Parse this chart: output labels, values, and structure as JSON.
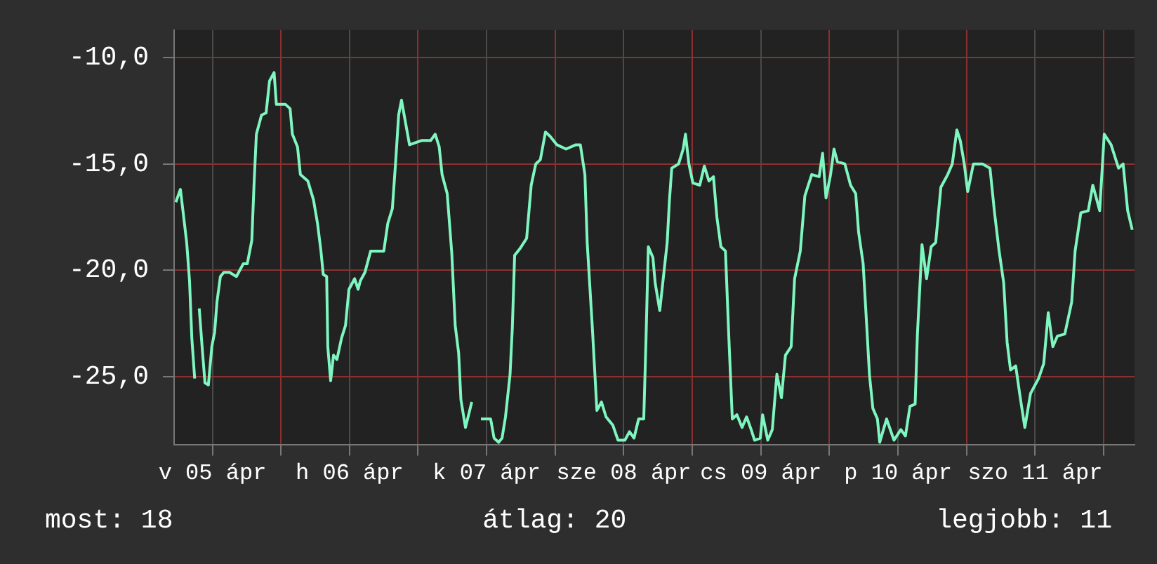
{
  "chart_data": {
    "type": "line",
    "x": [
      "--04-05T05:36",
      "--04-05T06:24",
      "--04-05T06:48",
      "--04-05T07:30",
      "--04-05T08:00",
      "--04-05T08:24",
      "--04-05T08:54",
      "--04-05T09:18",
      "--04-05T09:42",
      "--04-05T10:12",
      "--04-05T10:42",
      "--04-05T11:18",
      "--04-05T11:54",
      "--04-05T12:24",
      "--04-05T12:48",
      "--04-05T13:24",
      "--04-05T14:00",
      "--04-05T15:00",
      "--04-05T16:12",
      "--04-05T17:24",
      "--04-05T18:06",
      "--04-05T18:54",
      "--04-05T19:18",
      "--04-05T19:42",
      "--04-05T20:36",
      "--04-05T21:24",
      "--04-05T22:00",
      "--04-05T22:48",
      "--04-05T23:12",
      "--04-06T00:48",
      "--04-06T01:36",
      "--04-06T02:00",
      "--04-06T02:54",
      "--04-06T03:24",
      "--04-06T04:42",
      "--04-06T05:42",
      "--04-06T06:24",
      "--04-06T07:00",
      "--04-06T07:24",
      "--04-06T08:00",
      "--04-06T08:12",
      "--04-06T08:42",
      "--04-06T09:12",
      "--04-06T09:48",
      "--04-06T10:36",
      "--04-06T11:18",
      "--04-06T11:54",
      "--04-06T12:54",
      "--04-06T13:30",
      "--04-06T13:54",
      "--04-06T14:42",
      "--04-06T15:42",
      "--04-06T18:00",
      "--04-06T18:42",
      "--04-06T19:30",
      "--04-06T20:06",
      "--04-06T20:36",
      "--04-06T21:06",
      "--04-06T21:42",
      "--04-06T22:30",
      "--04-07T00:36",
      "--04-07T02:12",
      "--04-07T03:00",
      "--04-07T03:42",
      "--04-07T04:12",
      "--04-07T05:06",
      "--04-07T05:54",
      "--04-07T06:30",
      "--04-07T07:06",
      "--04-07T07:30",
      "--04-07T08:18",
      "--04-07T09:24",
      "--04-07T09:48",
      "--04-07T11:00",
      "--04-07T12:42",
      "--04-07T13:18",
      "--04-07T14:06",
      "--04-07T14:42",
      "--04-07T15:18",
      "--04-07T16:06",
      "--04-07T16:30",
      "--04-07T16:54",
      "--04-07T17:48",
      "--04-07T19:00",
      "--04-07T19:48",
      "--04-07T20:36",
      "--04-07T21:24",
      "--04-07T22:18",
      "--04-07T23:06",
      "--04-08T00:18",
      "--04-08T01:54",
      "--04-08T03:36",
      "--04-08T04:24",
      "--04-08T05:12",
      "--04-08T05:36",
      "--04-08T06:30",
      "--04-08T07:18",
      "--04-08T08:06",
      "--04-08T08:54",
      "--04-08T10:06",
      "--04-08T11:00",
      "--04-08T12:12",
      "--04-08T13:00",
      "--04-08T13:48",
      "--04-08T14:36",
      "--04-08T15:30",
      "--04-08T15:54",
      "--04-08T16:18",
      "--04-08T17:06",
      "--04-08T17:30",
      "--04-08T18:18",
      "--04-08T19:36",
      "--04-08T20:00",
      "--04-08T20:24",
      "--04-08T21:36",
      "--04-08T22:24",
      "--04-08T22:48",
      "--04-08T23:24",
      "--04-09T00:06",
      "--04-09T01:18",
      "--04-09T02:06",
      "--04-09T02:54",
      "--04-09T03:42",
      "--04-09T04:18",
      "--04-09T05:00",
      "--04-09T05:48",
      "--04-09T06:24",
      "--04-09T07:00",
      "--04-09T07:48",
      "--04-09T08:42",
      "--04-09T09:30",
      "--04-09T10:18",
      "--04-09T10:54",
      "--04-09T11:54",
      "--04-09T12:18",
      "--04-09T13:12",
      "--04-09T14:00",
      "--04-09T14:48",
      "--04-09T15:36",
      "--04-09T16:18",
      "--04-09T17:18",
      "--04-09T17:54",
      "--04-09T18:54",
      "--04-09T19:18",
      "--04-09T19:42",
      "--04-09T20:54",
      "--04-09T22:12",
      "--04-09T22:48",
      "--04-09T23:24",
      "--04-10T00:12",
      "--04-10T00:48",
      "--04-10T01:24",
      "--04-10T02:42",
      "--04-10T03:42",
      "--04-10T04:36",
      "--04-10T05:06",
      "--04-10T05:54",
      "--04-10T06:30",
      "--04-10T07:00",
      "--04-10T07:36",
      "--04-10T08:24",
      "--04-10T08:48",
      "--04-10T10:00",
      "--04-10T11:18",
      "--04-10T12:30",
      "--04-10T13:18",
      "--04-10T14:06",
      "--04-10T15:00",
      "--04-10T15:24",
      "--04-10T16:12",
      "--04-10T17:00",
      "--04-10T17:48",
      "--04-10T18:36",
      "--04-10T19:30",
      "--04-10T20:42",
      "--04-10T21:30",
      "--04-10T22:18",
      "--04-10T22:54",
      "--04-10T23:36",
      "--04-11T00:12",
      "--04-11T01:12",
      "--04-11T02:48",
      "--04-11T04:06",
      "--04-11T04:54",
      "--04-11T05:42",
      "--04-11T06:30",
      "--04-11T07:06",
      "--04-11T07:42",
      "--04-11T08:36",
      "--04-11T09:24",
      "--04-11T10:12",
      "--04-11T11:12",
      "--04-11T12:36",
      "--04-11T13:30",
      "--04-11T14:18",
      "--04-11T15:06",
      "--04-11T15:54",
      "--04-11T17:12",
      "--04-11T18:24",
      "--04-11T19:00",
      "--04-11T20:00",
      "--04-11T21:18",
      "--04-11T22:06",
      "--04-11T23:18",
      "--04-12T00:06",
      "--04-12T01:18",
      "--04-12T02:36",
      "--04-12T03:24",
      "--04-12T04:12",
      "--04-12T05:00"
    ],
    "series": [
      {
        "color": "#7ff5c0",
        "values": [
          -16.8,
          -16.2,
          -17.1,
          -18.7,
          -20.5,
          -23.2,
          -25.1,
          null,
          -21.8,
          -23.6,
          -25.3,
          -25.4,
          -23.6,
          -22.9,
          -21.5,
          -20.3,
          -20.1,
          -20.1,
          -20.3,
          -19.7,
          -19.7,
          -18.6,
          -15.9,
          -13.6,
          -12.7,
          -12.6,
          -11.1,
          -10.7,
          -12.2,
          -12.2,
          -12.4,
          -13.6,
          -14.2,
          -15.5,
          -15.8,
          -16.7,
          -17.8,
          -19.1,
          -20.2,
          -20.3,
          -23.6,
          -25.2,
          -24.0,
          -24.2,
          -23.2,
          -22.6,
          -20.9,
          -20.4,
          -20.9,
          -20.5,
          -20.1,
          -19.1,
          -19.1,
          -17.8,
          -17.1,
          -14.8,
          -12.7,
          -12.0,
          -12.9,
          -14.1,
          -13.9,
          -13.9,
          -13.6,
          -14.2,
          -15.5,
          -16.4,
          -19.2,
          -22.6,
          -23.9,
          -26.1,
          -27.4,
          -26.2,
          null,
          -27.0,
          -27.0,
          -27.9,
          -28.1,
          -27.9,
          -26.9,
          -24.9,
          -22.7,
          -19.3,
          -19.0,
          -18.5,
          -16.0,
          -15.0,
          -14.8,
          -13.5,
          -13.7,
          -14.1,
          -14.3,
          -14.1,
          -14.1,
          -15.5,
          -18.7,
          -22.7,
          -26.6,
          -26.2,
          -26.9,
          -27.3,
          -28.0,
          -28.0,
          -27.6,
          -27.9,
          -27.0,
          -27.0,
          -23.2,
          -18.9,
          -19.4,
          -20.6,
          -21.9,
          -18.7,
          -16.7,
          -15.2,
          -15.0,
          -14.3,
          -13.6,
          -15.0,
          -15.9,
          -16.0,
          -15.1,
          -15.8,
          -15.6,
          -17.5,
          -18.9,
          -19.1,
          -23.2,
          -27.0,
          -26.8,
          -27.4,
          -26.9,
          -27.5,
          -28.0,
          -27.9,
          -26.8,
          -28.0,
          -27.5,
          -24.9,
          -26.0,
          -24.0,
          -23.6,
          -20.4,
          -19.1,
          -17.8,
          -16.5,
          -15.5,
          -15.6,
          -14.5,
          -16.6,
          -15.5,
          -14.3,
          -14.9,
          -15.0,
          -16.0,
          -16.4,
          -18.2,
          -19.7,
          -22.5,
          -24.9,
          -26.5,
          -27.0,
          -28.1,
          -27.0,
          -28.0,
          -27.5,
          -27.8,
          -26.4,
          -26.3,
          -23.0,
          -18.8,
          -20.4,
          -18.9,
          -18.7,
          -16.1,
          -15.5,
          -15.0,
          -13.4,
          -13.9,
          -15.0,
          -16.3,
          -15.0,
          -15.0,
          -15.2,
          -17.3,
          -19.1,
          -20.6,
          -23.4,
          -24.7,
          -24.5,
          -26.0,
          -27.4,
          -25.8,
          -25.1,
          -24.4,
          -22.0,
          -23.6,
          -23.1,
          -23.0,
          -21.5,
          -19.1,
          -17.3,
          -17.2,
          -16.0,
          -17.2,
          -13.6,
          -14.1,
          -15.2,
          -15.0,
          -17.2,
          -18.1
        ]
      }
    ],
    "xlim": [
      "--04-05T05:18",
      "--04-12T05:24"
    ],
    "xticks": [
      {
        "value": "--04-05T12:00",
        "label": "v 05 ápr"
      },
      {
        "value": "--04-06T00:00",
        "label": null
      },
      {
        "value": "--04-06T12:00",
        "label": "h 06 ápr"
      },
      {
        "value": "--04-07T00:00",
        "label": null
      },
      {
        "value": "--04-07T12:00",
        "label": "k 07 ápr"
      },
      {
        "value": "--04-08T00:00",
        "label": null
      },
      {
        "value": "--04-08T12:00",
        "label": "sze 08 ápr"
      },
      {
        "value": "--04-09T00:00",
        "label": null
      },
      {
        "value": "--04-09T12:00",
        "label": "cs 09 ápr"
      },
      {
        "value": "--04-10T00:00",
        "label": null
      },
      {
        "value": "--04-10T12:00",
        "label": "p 10 ápr"
      },
      {
        "value": "--04-11T00:00",
        "label": null
      },
      {
        "value": "--04-11T12:00",
        "label": "szo 11 ápr"
      },
      {
        "value": "--04-12T00:00",
        "label": null
      }
    ],
    "ylim": [
      -28.2,
      -8.7
    ],
    "yticks": [
      {
        "value": -25,
        "label": "-25,0"
      },
      {
        "value": -20,
        "label": "-20,0"
      },
      {
        "value": -15,
        "label": "-15,0"
      },
      {
        "value": -10,
        "label": "-10,0"
      }
    ],
    "grid": true,
    "legend": false,
    "marker": "none",
    "line_style": "solid",
    "annotations": [
      "most: 18",
      "átlag: 20",
      "legjobb: 11"
    ]
  }
}
